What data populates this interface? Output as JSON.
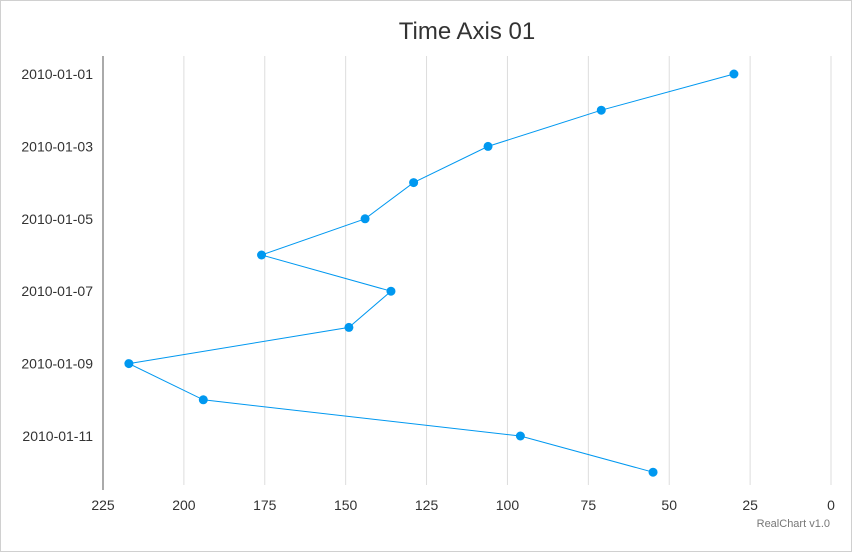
{
  "chart_data": {
    "type": "line",
    "title": "Time Axis 01",
    "credit": "RealChart v1.0",
    "orientation": "inverted",
    "x_axis": {
      "type": "time",
      "position": "left",
      "tick_labels": [
        "2010-01-01",
        "2010-01-03",
        "2010-01-05",
        "2010-01-07",
        "2010-01-09",
        "2010-01-11"
      ]
    },
    "y_axis": {
      "position": "bottom",
      "reversed": true,
      "range": [
        0,
        225
      ],
      "ticks": [
        225,
        200,
        175,
        150,
        125,
        100,
        75,
        50,
        25,
        0
      ]
    },
    "grid": true,
    "series": [
      {
        "color": "#0098f0",
        "points": [
          {
            "x": "2010-01-01",
            "y": 30
          },
          {
            "x": "2010-01-02",
            "y": 71
          },
          {
            "x": "2010-01-03",
            "y": 106
          },
          {
            "x": "2010-01-04",
            "y": 129
          },
          {
            "x": "2010-01-05",
            "y": 144
          },
          {
            "x": "2010-01-06",
            "y": 176
          },
          {
            "x": "2010-01-07",
            "y": 136
          },
          {
            "x": "2010-01-08",
            "y": 149
          },
          {
            "x": "2010-01-09",
            "y": 217
          },
          {
            "x": "2010-01-10",
            "y": 194
          },
          {
            "x": "2010-01-11",
            "y": 96
          },
          {
            "x": "2010-01-12",
            "y": 55
          }
        ]
      }
    ]
  }
}
